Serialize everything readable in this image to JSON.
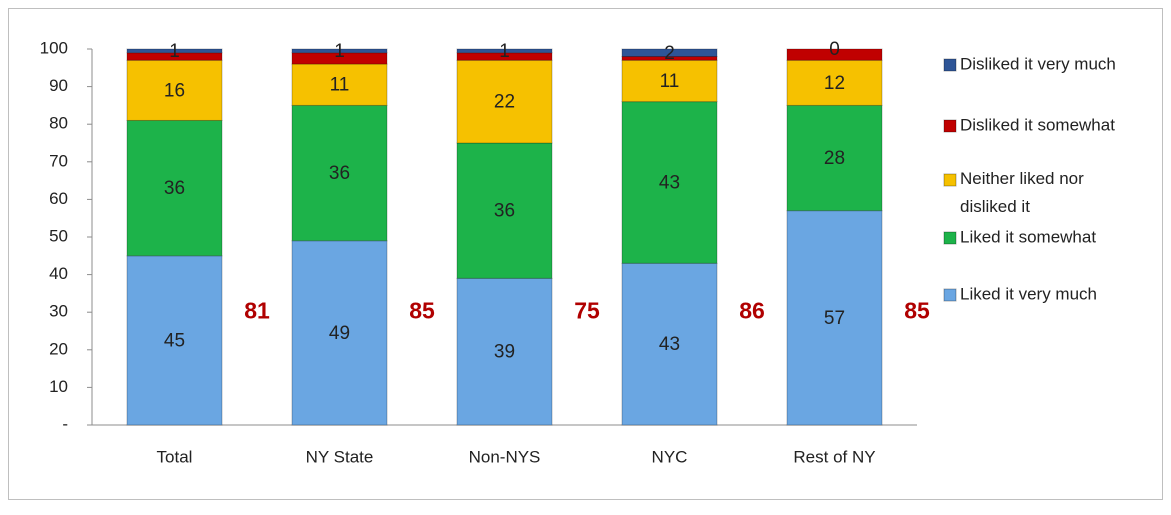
{
  "chart_data": {
    "type": "stacked_bar",
    "categories": [
      "Total",
      "NY State",
      "Non-NYS",
      "NYC",
      "Rest of NY"
    ],
    "series": [
      {
        "name": "Liked it very much",
        "color": "#6aa6e2",
        "values": [
          45,
          49,
          39,
          43,
          57
        ],
        "data_labels": true
      },
      {
        "name": "Liked it somewhat",
        "color": "#1db34a",
        "values": [
          36,
          36,
          36,
          43,
          28
        ],
        "data_labels": true
      },
      {
        "name": "Neither liked nor disliked it",
        "color": "#f6c100",
        "values": [
          16,
          11,
          22,
          11,
          12
        ],
        "data_labels": true
      },
      {
        "name": "Disliked it somewhat",
        "color": "#c00000",
        "values": [
          2,
          3,
          2,
          1,
          3
        ],
        "data_labels": false
      },
      {
        "name": "Disliked it very much",
        "color": "#2e5597",
        "values": [
          1,
          1,
          1,
          2,
          0
        ],
        "data_labels": true
      }
    ],
    "annotations": {
      "color": "#b00000",
      "values": [
        81,
        85,
        75,
        86,
        85
      ]
    },
    "ylim": [
      0,
      100
    ],
    "yticks": [
      {
        "value": 0,
        "label": "-"
      },
      10,
      20,
      30,
      40,
      50,
      60,
      70,
      80,
      90,
      100
    ],
    "legend": "right"
  }
}
